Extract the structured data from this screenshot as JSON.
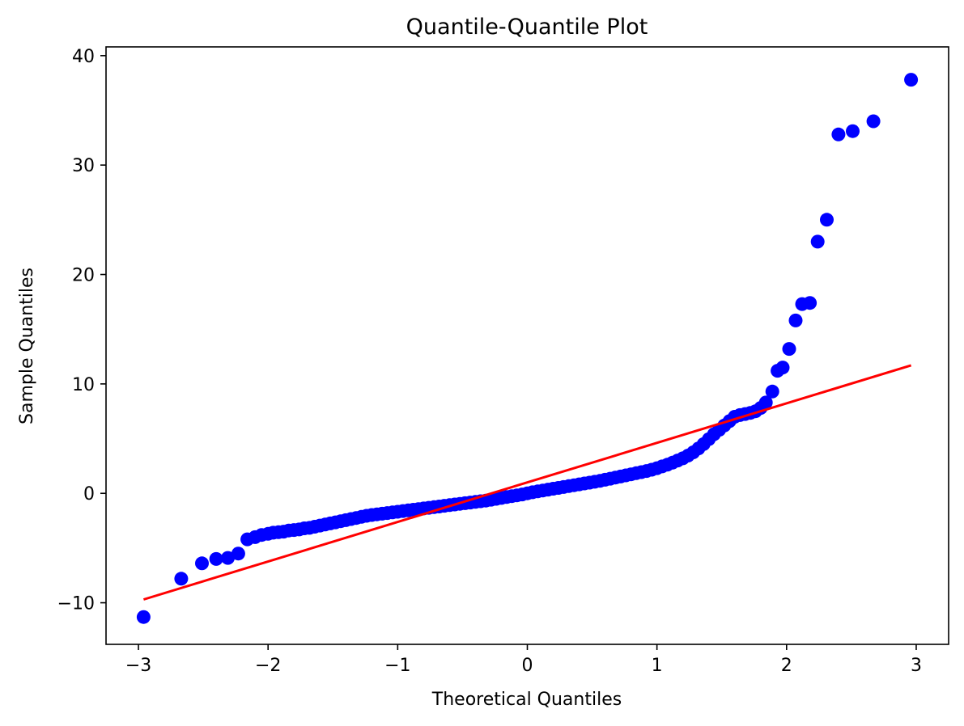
{
  "chart_data": {
    "type": "scatter",
    "title": "Quantile-Quantile Plot",
    "xlabel": "Theoretical Quantiles",
    "ylabel": "Sample Quantiles",
    "xlim": [
      -3.25,
      3.25
    ],
    "ylim": [
      -13.8,
      40.8
    ],
    "xticks": [
      -3,
      -2,
      -1,
      0,
      1,
      2,
      3
    ],
    "xtick_labels": [
      "−3",
      "−2",
      "−1",
      "0",
      "1",
      "2",
      "3"
    ],
    "yticks": [
      -10,
      0,
      10,
      20,
      30,
      40
    ],
    "ytick_labels": [
      "−10",
      "0",
      "10",
      "20",
      "30",
      "40"
    ],
    "grid": false,
    "points_color": "#0000ff",
    "line_color": "#ff0000",
    "series": [
      {
        "values": [
          [
            -2.96,
            -11.3
          ],
          [
            -2.67,
            -7.8
          ],
          [
            -2.51,
            -6.4
          ],
          [
            -2.4,
            -6.0
          ],
          [
            -2.31,
            -5.9
          ],
          [
            -2.23,
            -5.5
          ],
          [
            -2.16,
            -4.2
          ],
          [
            -2.1,
            -4.0
          ],
          [
            -2.05,
            -3.8
          ],
          [
            -2.0,
            -3.7
          ],
          [
            -1.96,
            -3.6
          ],
          [
            -1.92,
            -3.55
          ],
          [
            -1.88,
            -3.5
          ],
          [
            -1.84,
            -3.4
          ],
          [
            -1.8,
            -3.35
          ],
          [
            -1.76,
            -3.3
          ],
          [
            -1.72,
            -3.2
          ],
          [
            -1.68,
            -3.15
          ],
          [
            -1.64,
            -3.05
          ],
          [
            -1.6,
            -2.95
          ],
          [
            -1.56,
            -2.85
          ],
          [
            -1.52,
            -2.75
          ],
          [
            -1.48,
            -2.65
          ],
          [
            -1.44,
            -2.55
          ],
          [
            -1.4,
            -2.45
          ],
          [
            -1.36,
            -2.35
          ],
          [
            -1.32,
            -2.25
          ],
          [
            -1.28,
            -2.15
          ],
          [
            -1.24,
            -2.05
          ],
          [
            -1.2,
            -1.98
          ],
          [
            -1.16,
            -1.92
          ],
          [
            -1.12,
            -1.86
          ],
          [
            -1.08,
            -1.8
          ],
          [
            -1.04,
            -1.74
          ],
          [
            -1.0,
            -1.68
          ],
          [
            -0.96,
            -1.62
          ],
          [
            -0.92,
            -1.56
          ],
          [
            -0.88,
            -1.5
          ],
          [
            -0.84,
            -1.44
          ],
          [
            -0.8,
            -1.38
          ],
          [
            -0.76,
            -1.32
          ],
          [
            -0.72,
            -1.26
          ],
          [
            -0.68,
            -1.2
          ],
          [
            -0.64,
            -1.14
          ],
          [
            -0.6,
            -1.08
          ],
          [
            -0.56,
            -1.02
          ],
          [
            -0.52,
            -0.96
          ],
          [
            -0.48,
            -0.9
          ],
          [
            -0.44,
            -0.84
          ],
          [
            -0.4,
            -0.78
          ],
          [
            -0.36,
            -0.72
          ],
          [
            -0.32,
            -0.66
          ],
          [
            -0.28,
            -0.58
          ],
          [
            -0.24,
            -0.5
          ],
          [
            -0.2,
            -0.42
          ],
          [
            -0.16,
            -0.34
          ],
          [
            -0.12,
            -0.26
          ],
          [
            -0.08,
            -0.18
          ],
          [
            -0.04,
            -0.1
          ],
          [
            0.0,
            0.0
          ],
          [
            0.04,
            0.1
          ],
          [
            0.08,
            0.18
          ],
          [
            0.12,
            0.26
          ],
          [
            0.16,
            0.34
          ],
          [
            0.2,
            0.42
          ],
          [
            0.24,
            0.5
          ],
          [
            0.28,
            0.58
          ],
          [
            0.32,
            0.66
          ],
          [
            0.36,
            0.74
          ],
          [
            0.4,
            0.82
          ],
          [
            0.44,
            0.9
          ],
          [
            0.48,
            0.98
          ],
          [
            0.52,
            1.06
          ],
          [
            0.56,
            1.14
          ],
          [
            0.6,
            1.24
          ],
          [
            0.64,
            1.34
          ],
          [
            0.68,
            1.44
          ],
          [
            0.72,
            1.54
          ],
          [
            0.76,
            1.64
          ],
          [
            0.8,
            1.74
          ],
          [
            0.84,
            1.84
          ],
          [
            0.88,
            1.94
          ],
          [
            0.92,
            2.04
          ],
          [
            0.96,
            2.16
          ],
          [
            1.0,
            2.3
          ],
          [
            1.04,
            2.46
          ],
          [
            1.08,
            2.62
          ],
          [
            1.12,
            2.8
          ],
          [
            1.16,
            3.0
          ],
          [
            1.2,
            3.2
          ],
          [
            1.24,
            3.45
          ],
          [
            1.28,
            3.75
          ],
          [
            1.32,
            4.1
          ],
          [
            1.36,
            4.5
          ],
          [
            1.4,
            4.95
          ],
          [
            1.44,
            5.4
          ],
          [
            1.48,
            5.8
          ],
          [
            1.52,
            6.2
          ],
          [
            1.56,
            6.6
          ],
          [
            1.6,
            7.0
          ],
          [
            1.64,
            7.15
          ],
          [
            1.68,
            7.25
          ],
          [
            1.72,
            7.35
          ],
          [
            1.76,
            7.5
          ],
          [
            1.8,
            7.8
          ],
          [
            1.84,
            8.3
          ],
          [
            1.89,
            9.3
          ],
          [
            1.93,
            11.2
          ],
          [
            1.97,
            11.5
          ],
          [
            2.02,
            13.2
          ],
          [
            2.07,
            15.8
          ],
          [
            2.12,
            17.3
          ],
          [
            2.18,
            17.4
          ],
          [
            2.24,
            23.0
          ],
          [
            2.31,
            25.0
          ],
          [
            2.4,
            32.8
          ],
          [
            2.51,
            33.1
          ],
          [
            2.67,
            34.0
          ],
          [
            2.96,
            37.8
          ]
        ]
      }
    ],
    "reference_line": [
      [
        -2.96,
        -9.7
      ],
      [
        2.96,
        11.7
      ]
    ]
  }
}
